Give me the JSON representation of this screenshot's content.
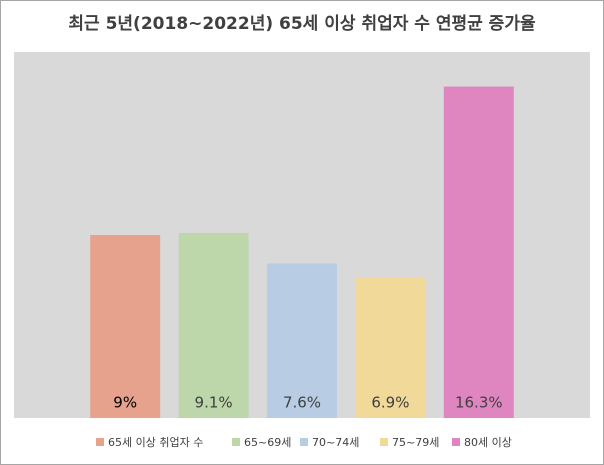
{
  "chart_data": {
    "type": "bar",
    "title": "최근 5년(2018~2022년) 65세 이상 취업자 수 연평균 증가율",
    "categories": [
      "65세 이상 취업자 수",
      "65~69세",
      "70~74세",
      "75~79세",
      "80세 이상"
    ],
    "values": [
      9,
      9.1,
      7.6,
      6.9,
      16.3
    ],
    "value_labels": [
      "9%",
      "9.1%",
      "7.6%",
      "6.9%",
      "16.3%"
    ],
    "colors": [
      "#e6a28c",
      "#bdd7ab",
      "#b8cde3",
      "#f1d99a",
      "#df86c0"
    ],
    "ylim": [
      0,
      18
    ]
  }
}
